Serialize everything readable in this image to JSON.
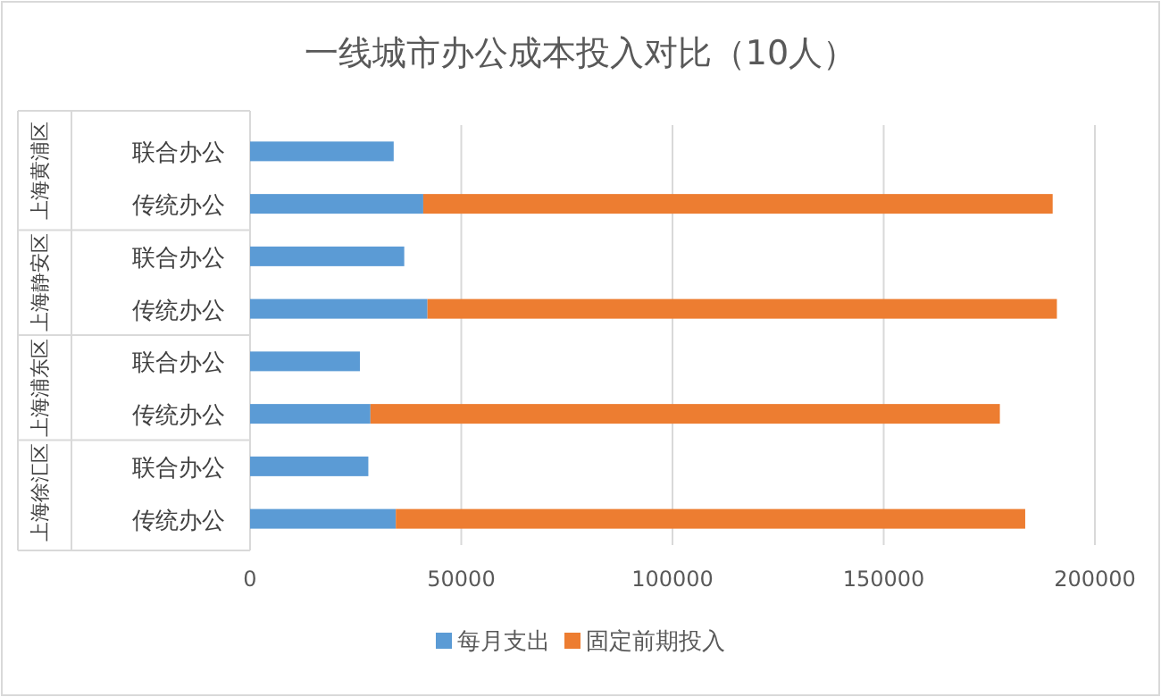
{
  "chart_data": {
    "type": "bar",
    "orientation": "horizontal",
    "stacked": true,
    "title": "一线城市办公成本投入对比（10人）",
    "categories": [
      "联合办公",
      "传统办公",
      "联合办公",
      "传统办公",
      "联合办公",
      "传统办公",
      "联合办公",
      "传统办公"
    ],
    "series": [
      {
        "name": "每月支出",
        "color": "#5b9bd5",
        "values": [
          34000,
          41000,
          36500,
          42000,
          26000,
          28500,
          28000,
          34500
        ]
      },
      {
        "name": "固定前期投入",
        "color": "#ed7d31",
        "values": [
          null,
          149000,
          null,
          149000,
          null,
          149000,
          null,
          149000
        ]
      }
    ],
    "xlim": [
      0,
      200000
    ],
    "xticks": [
      0,
      50000,
      100000,
      150000,
      200000
    ],
    "grid": "x",
    "legend": "bottom",
    "annotations": [
      "上海黄浦区",
      "上海静安区",
      "上海浦东区",
      "上海徐汇区"
    ]
  }
}
